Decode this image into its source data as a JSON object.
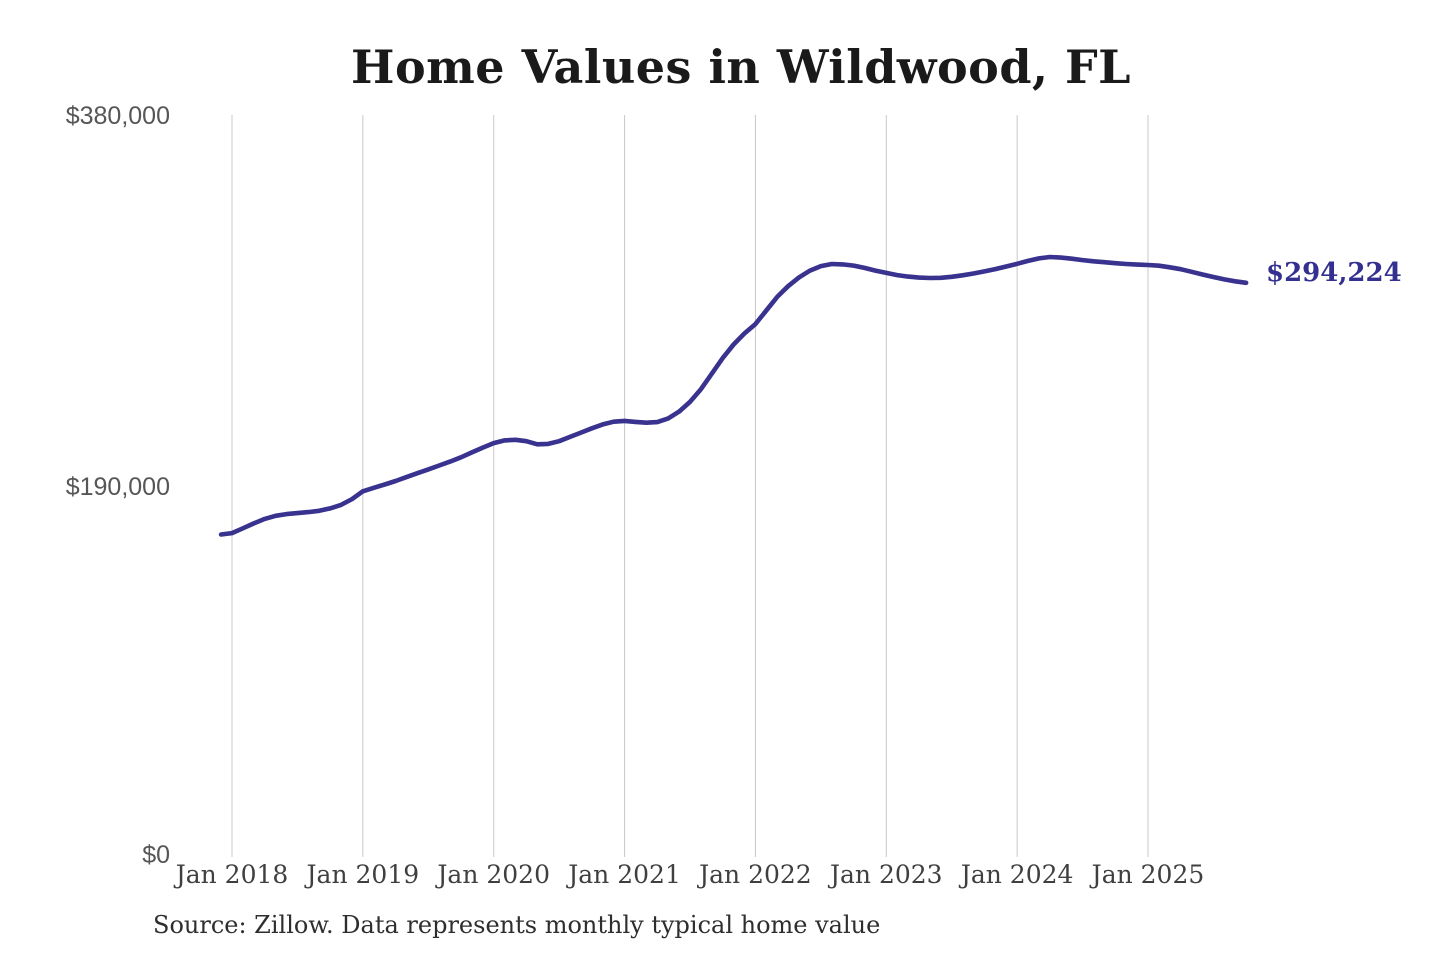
{
  "chart_data": {
    "type": "line",
    "title": "Home Values in Wildwood, FL",
    "source_note": "Source: Zillow. Data represents monthly typical home value",
    "legend": "none",
    "grid": "vertical-only",
    "x_interval": "month",
    "x_start": "Dec 2017",
    "x_end": "Oct 2025",
    "x_tick_labels": [
      "Jan 2018",
      "Jan 2019",
      "Jan 2020",
      "Jan 2021",
      "Jan 2022",
      "Jan 2023",
      "Jan 2024",
      "Jan 2025"
    ],
    "y_tick_labels": [
      "$380,000",
      "$190,000",
      "$0"
    ],
    "y_tick_values": [
      380000,
      190000,
      0
    ],
    "ylim": [
      0,
      380000
    ],
    "last_value": 294224,
    "last_value_label": "$294,224",
    "series": [
      {
        "name": "Monthly typical home value",
        "color": "#39328f",
        "values": [
          164800,
          165500,
          168000,
          170500,
          172800,
          174400,
          175300,
          175800,
          176300,
          177000,
          178200,
          180000,
          183000,
          187000,
          188800,
          190500,
          192300,
          194300,
          196300,
          198300,
          200300,
          202300,
          204500,
          207000,
          209500,
          211800,
          213200,
          213500,
          212800,
          211200,
          211400,
          212800,
          215000,
          217200,
          219400,
          221400,
          222800,
          223200,
          222700,
          222300,
          222600,
          224500,
          228000,
          233000,
          239500,
          247500,
          255500,
          262500,
          268200,
          273000,
          280000,
          287000,
          292500,
          297000,
          300500,
          302800,
          303900,
          303700,
          303100,
          301900,
          300500,
          299300,
          298200,
          297400,
          296900,
          296700,
          296800,
          297300,
          298100,
          299000,
          300100,
          301300,
          302600,
          304000,
          305500,
          306800,
          307500,
          307200,
          306600,
          305900,
          305300,
          304800,
          304300,
          303900,
          303600,
          303400,
          303000,
          302200,
          301200,
          299900,
          298500,
          297200,
          296000,
          295000,
          294224
        ]
      }
    ],
    "colors": {
      "line": "#39328f",
      "grid": "#c9c9c9",
      "title_text": "#1a1a1a",
      "axis_text": "#565656",
      "x_axis_text": "#3f3f3f",
      "annotation_text": "#33308f",
      "source_text": "#2e2e2e",
      "background": "#ffffff"
    }
  }
}
